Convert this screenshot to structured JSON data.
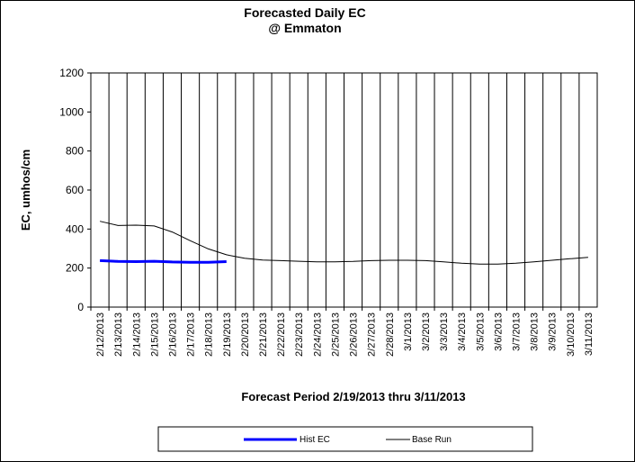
{
  "chart_data": {
    "type": "line",
    "title": "Forecasted Daily EC",
    "subtitle": "@ Emmaton",
    "xlabel": "Forecast Period  2/19/2013 thru 3/11/2013",
    "ylabel": "EC, umhos/cm",
    "ylim": [
      0,
      1200
    ],
    "yticks": [
      "0",
      "200",
      "400",
      "600",
      "800",
      "1000",
      "1200"
    ],
    "grid": "vertical",
    "legend": "bottom",
    "x": [
      "2/12/2013",
      "2/13/2013",
      "2/14/2013",
      "2/15/2013",
      "2/16/2013",
      "2/17/2013",
      "2/18/2013",
      "2/19/2013",
      "2/20/2013",
      "2/21/2013",
      "2/22/2013",
      "2/23/2013",
      "2/24/2013",
      "2/25/2013",
      "2/26/2013",
      "2/27/2013",
      "2/28/2013",
      "3/1/2013",
      "3/2/2013",
      "3/3/2013",
      "3/4/2013",
      "3/5/2013",
      "3/6/2013",
      "3/7/2013",
      "3/8/2013",
      "3/9/2013",
      "3/10/2013",
      "3/11/2013"
    ],
    "series": [
      {
        "name": "Hist EC",
        "color": "#0000ff",
        "values": [
          238,
          234,
          233,
          235,
          231,
          230,
          230,
          233,
          null,
          null,
          null,
          null,
          null,
          null,
          null,
          null,
          null,
          null,
          null,
          null,
          null,
          null,
          null,
          null,
          null,
          null,
          null,
          null
        ]
      },
      {
        "name": "Base Run",
        "color": "#000000",
        "values": [
          440,
          418,
          420,
          416,
          385,
          340,
          298,
          268,
          250,
          241,
          238,
          235,
          232,
          232,
          234,
          238,
          240,
          240,
          238,
          232,
          225,
          220,
          220,
          225,
          232,
          240,
          248,
          255
        ]
      }
    ]
  }
}
